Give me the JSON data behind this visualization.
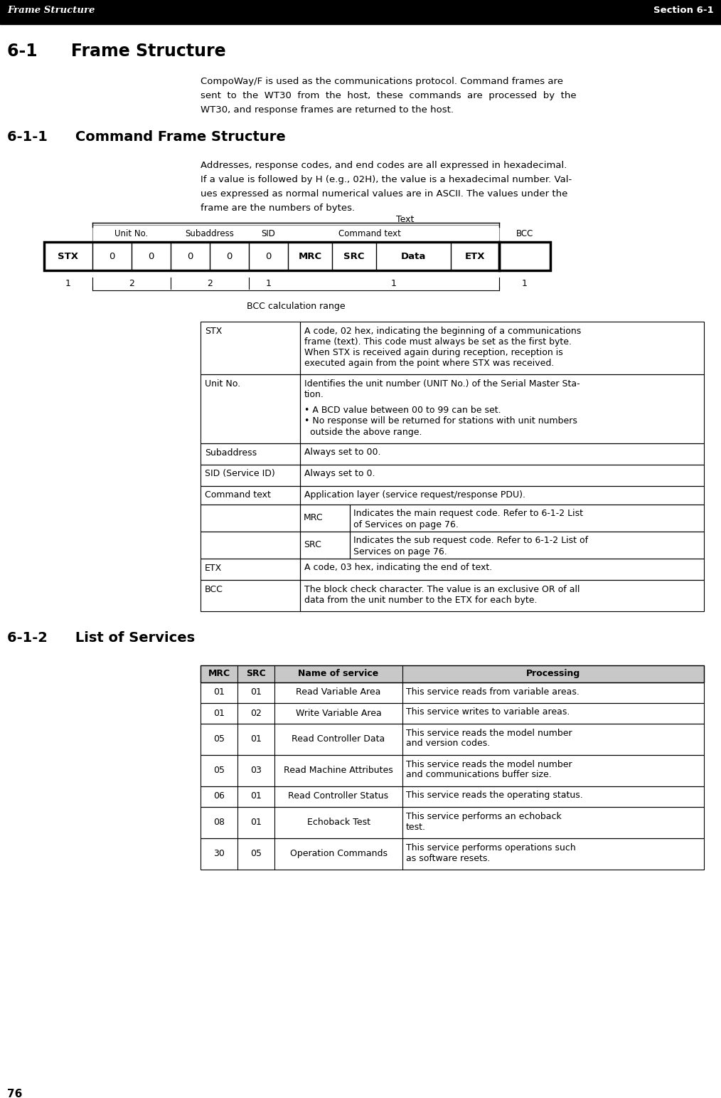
{
  "page_number": "76",
  "header_left": "Frame Structure",
  "header_right": "Section 6-1",
  "section_title": "6-1  Frame Structure",
  "section_body_lines": [
    "CompoWay/F is used as the communications protocol. Command frames are",
    "sent  to  the  WT30  from  the  host,  these  commands  are  processed  by  the",
    "WT30, and response frames are returned to the host."
  ],
  "subsection1_title": "6-1-1  Command Frame Structure",
  "subsection1_body_lines": [
    "Addresses, response codes, and end codes are all expressed in hexadecimal.",
    "If a value is followed by H (e.g., 02H), the value is a hexadecimal number. Val-",
    "ues expressed as normal numerical values are in ASCII. The values under the",
    "frame are the numbers of bytes."
  ],
  "frame_label": "Text",
  "bcc_label": "BCC calculation range",
  "desc_rows": [
    {
      "label": "STX",
      "lines": [
        "A code, 02 hex, indicating the beginning of a communications",
        "frame (text). This code must always be set as the first byte.",
        "When STX is received again during reception, reception is",
        "executed again from the point where STX was received."
      ],
      "type": "simple"
    },
    {
      "label": "Unit No.",
      "lines": [
        "Identifies the unit number (UNIT No.) of the Serial Master Sta-",
        "tion.",
        "",
        "• A BCD value between 00 to 99 can be set.",
        "• No response will be returned for stations with unit numbers",
        "  outside the above range."
      ],
      "type": "simple"
    },
    {
      "label": "Subaddress",
      "lines": [
        "Always set to 00."
      ],
      "type": "simple"
    },
    {
      "label": "SID (Service ID)",
      "lines": [
        "Always set to 0."
      ],
      "type": "simple"
    },
    {
      "label": "Command text",
      "main_line": "Application layer (service request/response PDU).",
      "sub_rows": [
        {
          "key": "MRC",
          "lines": [
            "Indicates the main request code. Refer to 6-1-2 List",
            "of Services on page 76."
          ]
        },
        {
          "key": "SRC",
          "lines": [
            "Indicates the sub request code. Refer to 6-1-2 List of",
            "Services on page 76."
          ]
        }
      ],
      "type": "command"
    },
    {
      "label": "ETX",
      "lines": [
        "A code, 03 hex, indicating the end of text."
      ],
      "type": "simple"
    },
    {
      "label": "BCC",
      "lines": [
        "The block check character. The value is an exclusive OR of all",
        "data from the unit number to the ETX for each byte."
      ],
      "type": "simple"
    }
  ],
  "subsection2_title": "6-1-2  List of Services",
  "services_headers": [
    "MRC",
    "SRC",
    "Name of service",
    "Processing"
  ],
  "services_rows": [
    [
      "01",
      "01",
      "Read Variable Area",
      "This service reads from variable areas."
    ],
    [
      "01",
      "02",
      "Write Variable Area",
      "This service writes to variable areas."
    ],
    [
      "05",
      "01",
      "Read Controller Data",
      "This service reads the model number\nand version codes."
    ],
    [
      "05",
      "03",
      "Read Machine Attributes",
      "This service reads the model number\nand communications buffer size."
    ],
    [
      "06",
      "01",
      "Read Controller Status",
      "This service reads the operating status."
    ],
    [
      "08",
      "01",
      "Echoback Test",
      "This service performs an echoback\ntest."
    ],
    [
      "30",
      "05",
      "Operation Commands",
      "This service performs operations such\nas software resets."
    ]
  ]
}
